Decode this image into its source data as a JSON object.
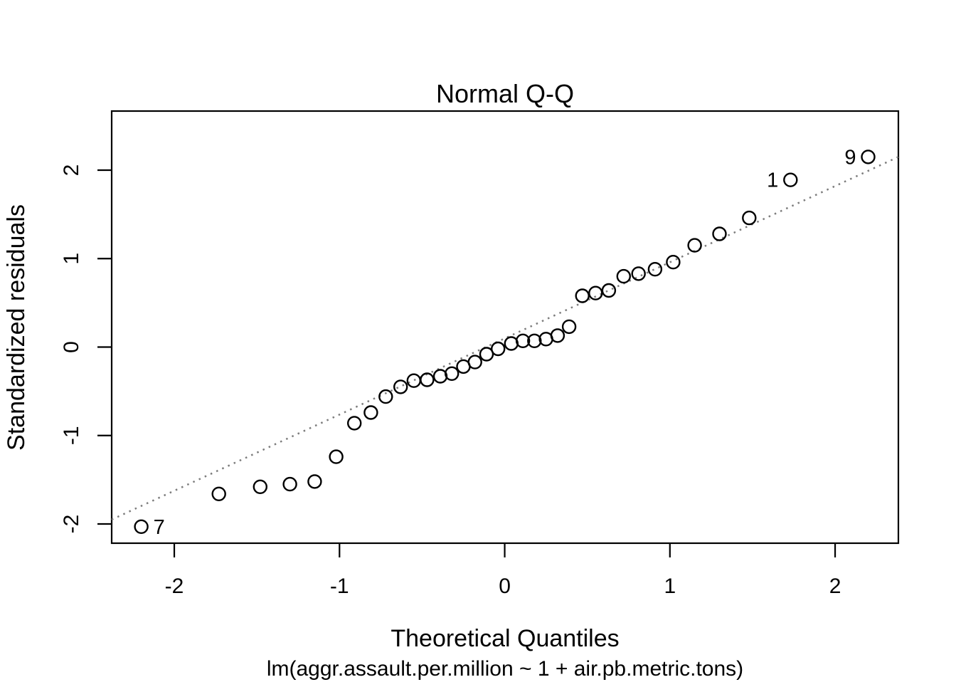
{
  "figure": {
    "background": "#ffffff",
    "foreground": "#000000",
    "ref_line_color": "#7c7c7c"
  },
  "chart_data": {
    "type": "scatter",
    "title": "Normal Q-Q",
    "xlabel": "Theoretical Quantiles",
    "sub": "lm(aggr.assault.per.million ~ 1 + air.pb.metric.tons)",
    "ylabel": "Standardized residuals",
    "xlim": [
      -2.379,
      2.383
    ],
    "ylim": [
      -2.217,
      2.668
    ],
    "xticks": [
      "-2",
      "-1",
      "0",
      "1",
      "2"
    ],
    "xtick_values": [
      -2,
      -1,
      0,
      1,
      2
    ],
    "yticks": [
      "-2",
      "-1",
      "0",
      "1",
      "2"
    ],
    "ytick_values": [
      -2,
      -1,
      0,
      1,
      2
    ],
    "grid": false,
    "legend": false,
    "marker": "open-circle",
    "n_points": 36,
    "points": [
      [
        -2.2,
        -2.03
      ],
      [
        -1.73,
        -1.66
      ],
      [
        -1.48,
        -1.58
      ],
      [
        -1.3,
        -1.55
      ],
      [
        -1.15,
        -1.52
      ],
      [
        -1.02,
        -1.24
      ],
      [
        -0.91,
        -0.86
      ],
      [
        -0.81,
        -0.74
      ],
      [
        -0.72,
        -0.56
      ],
      [
        -0.63,
        -0.45
      ],
      [
        -0.55,
        -0.38
      ],
      [
        -0.47,
        -0.37
      ],
      [
        -0.39,
        -0.33
      ],
      [
        -0.32,
        -0.3
      ],
      [
        -0.25,
        -0.22
      ],
      [
        -0.18,
        -0.17
      ],
      [
        -0.11,
        -0.08
      ],
      [
        -0.04,
        -0.02
      ],
      [
        0.04,
        0.04
      ],
      [
        0.11,
        0.07
      ],
      [
        0.18,
        0.07
      ],
      [
        0.25,
        0.09
      ],
      [
        0.32,
        0.13
      ],
      [
        0.39,
        0.23
      ],
      [
        0.47,
        0.58
      ],
      [
        0.55,
        0.61
      ],
      [
        0.63,
        0.64
      ],
      [
        0.72,
        0.8
      ],
      [
        0.81,
        0.83
      ],
      [
        0.91,
        0.88
      ],
      [
        1.02,
        0.96
      ],
      [
        1.15,
        1.15
      ],
      [
        1.3,
        1.28
      ],
      [
        1.48,
        1.46
      ],
      [
        1.73,
        1.89
      ],
      [
        2.2,
        2.15
      ]
    ],
    "point_labels": [
      {
        "text": "7",
        "x": -2.2,
        "y": -2.03,
        "side": "right"
      },
      {
        "text": "1",
        "x": 1.73,
        "y": 1.89,
        "side": "left"
      },
      {
        "text": "9",
        "x": 2.2,
        "y": 2.15,
        "side": "left"
      }
    ],
    "ref_line": {
      "slope": 0.861,
      "intercept": 0.098,
      "style": "dotted"
    }
  }
}
